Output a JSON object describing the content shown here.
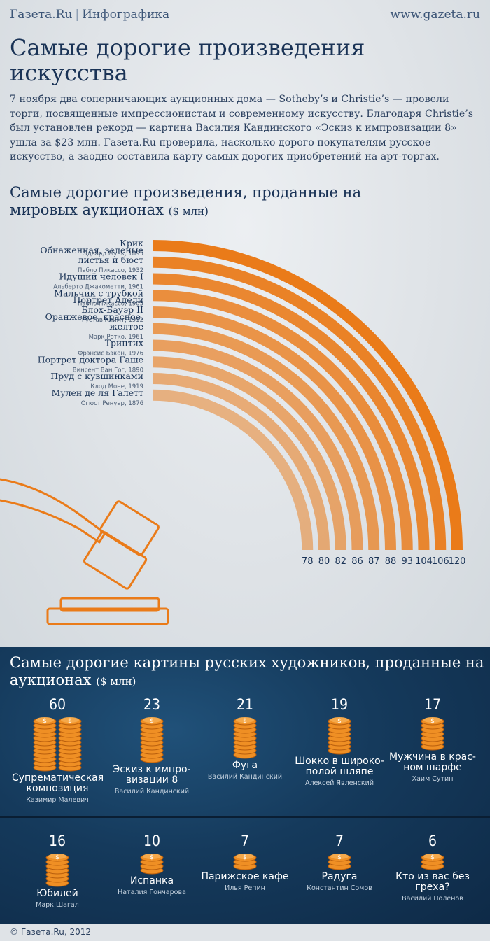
{
  "header": {
    "brand": "Газета.Ru",
    "section": "Инфографика",
    "url": "www.gazeta.ru"
  },
  "title": "Самые дорогие произведения искусства",
  "intro": "7 ноября два соперничающих аукционных дома — Sotheby’s и Christie’s — провели торги, посвященные импрессионистам и современному искусству. Благодаря Christie’s был установлен рекорд — картина Василия Кандинского «Эскиз к импровизации 8» ушла за $23 млн. Газета.Ru проверила, насколько дорого покупателям русское искусство, а заодно составила карту самых дорогих приобретений на арт-торгах.",
  "section1": {
    "title": "Самые дорогие произведения, проданные на мировых аукционах",
    "unit": "($ млн)"
  },
  "section2": {
    "title": "Самые дорогие картины русских художников, проданные на аукционах",
    "unit": "($ млн)"
  },
  "footer": "© Газета.Ru, 2012",
  "colors": {
    "arc": "#ea7b19",
    "coin": "#ef8f24",
    "dark_bg": "#153a5c",
    "text": "#1f3552"
  },
  "chart_data": [
    {
      "type": "bar",
      "title": "Самые дорогие произведения, проданные на мировых аукционах",
      "ylabel": "$ млн",
      "series": [
        {
          "name": "Крик",
          "author": "Эдвард Мунк, 1895",
          "value": 120
        },
        {
          "name": "Обнаженная, зеленые листья и бюст",
          "author": "Пабло Пикассо, 1932",
          "value": 106
        },
        {
          "name": "Идущий человек I",
          "author": "Альберто Джакометти, 1961",
          "value": 104
        },
        {
          "name": "Мальчик с трубкой",
          "author": "Пабло Пикассо, 1905",
          "value": 93
        },
        {
          "name": "Портрет Адели Блох-Бауэр II",
          "author": "Густав Климт, 1912",
          "value": 88
        },
        {
          "name": "Оранжевое, красное, желтое",
          "author": "Марк Ротко, 1961",
          "value": 87
        },
        {
          "name": "Триптих",
          "author": "Фрэнсис Бэкон, 1976",
          "value": 86
        },
        {
          "name": "Портрет доктора Гаше",
          "author": "Винсент Ван Гог, 1890",
          "value": 82
        },
        {
          "name": "Пруд с кувшинками",
          "author": "Клод Моне, 1919",
          "value": 80
        },
        {
          "name": "Мулен де ля Галетт",
          "author": "Огюст Ренуар, 1876",
          "value": 78
        }
      ]
    },
    {
      "type": "bar",
      "title": "Самые дорогие картины русских художников, проданные на аукционах",
      "ylabel": "$ млн",
      "series": [
        {
          "name": "Супрематическая композиция",
          "author": "Казимир Малевич",
          "value": 60
        },
        {
          "name": "Эскиз к импро-визации 8",
          "author": "Василий Кандинский",
          "value": 23
        },
        {
          "name": "Фуга",
          "author": "Василий Кандинский",
          "value": 21
        },
        {
          "name": "Шокко в широко-полой шляпе",
          "author": "Алексей Явленский",
          "value": 19
        },
        {
          "name": "Мужчина в крас-ном шарфе",
          "author": "Хаим Сутин",
          "value": 17
        },
        {
          "name": "Юбилей",
          "author": "Марк Шагал",
          "value": 16
        },
        {
          "name": "Испанка",
          "author": "Наталия Гончарова",
          "value": 10
        },
        {
          "name": "Парижское кафе",
          "author": "Илья Репин",
          "value": 7
        },
        {
          "name": "Радуга",
          "author": "Константин Сомов",
          "value": 7
        },
        {
          "name": "Кто из вас без греха?",
          "author": "Василий Поленов",
          "value": 6
        }
      ]
    }
  ]
}
